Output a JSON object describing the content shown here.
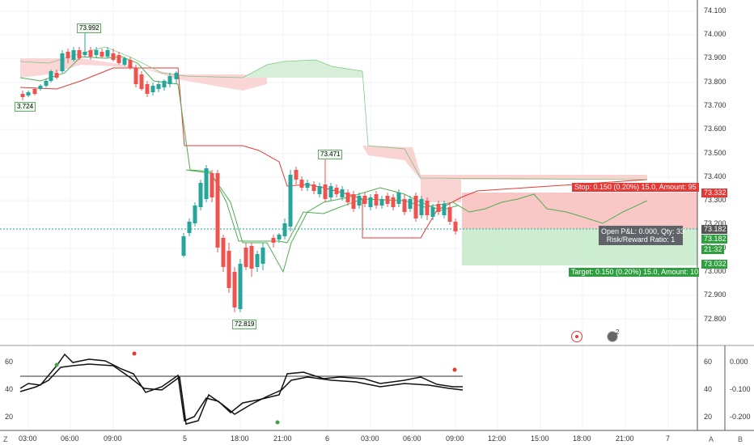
{
  "colors": {
    "up": "#26a69a",
    "down": "#ef5350",
    "stop_fill": "#f8b4b4",
    "target_fill": "#bfe8c4",
    "cloud_red": "#f9d2d2",
    "cloud_green": "#d7efd9"
  },
  "price_axis": {
    "ticks": [
      "74.100",
      "74.000",
      "73.900",
      "73.800",
      "73.700",
      "73.600",
      "73.500",
      "73.400",
      "73.300",
      "73.200",
      "73.100",
      "73.000",
      "72.900",
      "72.800"
    ]
  },
  "price_tags": {
    "stop": "73.332",
    "current": "73.182",
    "last": "73.182",
    "countdown": "21:32",
    "target": "73.032"
  },
  "time_axis": {
    "ticks": [
      "03:00",
      "06:00",
      "09:00",
      "5",
      "18:00",
      "21:00",
      "6",
      "03:00",
      "06:00",
      "09:00",
      "12:00",
      "15:00",
      "18:00",
      "21:00",
      "7"
    ]
  },
  "annotations": {
    "high_1": "73.992",
    "low_left": "3.724",
    "high_2": "73.471",
    "low_2": "72.819"
  },
  "position_tool": {
    "stop_text": "Stop: 0.150 (0.20%) 15.0, Amount: 95",
    "target_text": "Target: 0.150 (0.20%) 15.0, Amount: 10",
    "pnl_text": "Open P&L: 0.000, Qty: 33",
    "rr_text": "Risk/Reward Ratio: 1"
  },
  "oscillator": {
    "axis_left": [
      "60",
      "40",
      "20"
    ],
    "axis_right_1": [
      "60",
      "40",
      "20"
    ],
    "axis_right_2": [
      "0.000",
      "-0.100",
      "-0.200"
    ]
  },
  "corner": {
    "z": "Z",
    "a": "A",
    "b": "B"
  },
  "event_badge": "2"
}
